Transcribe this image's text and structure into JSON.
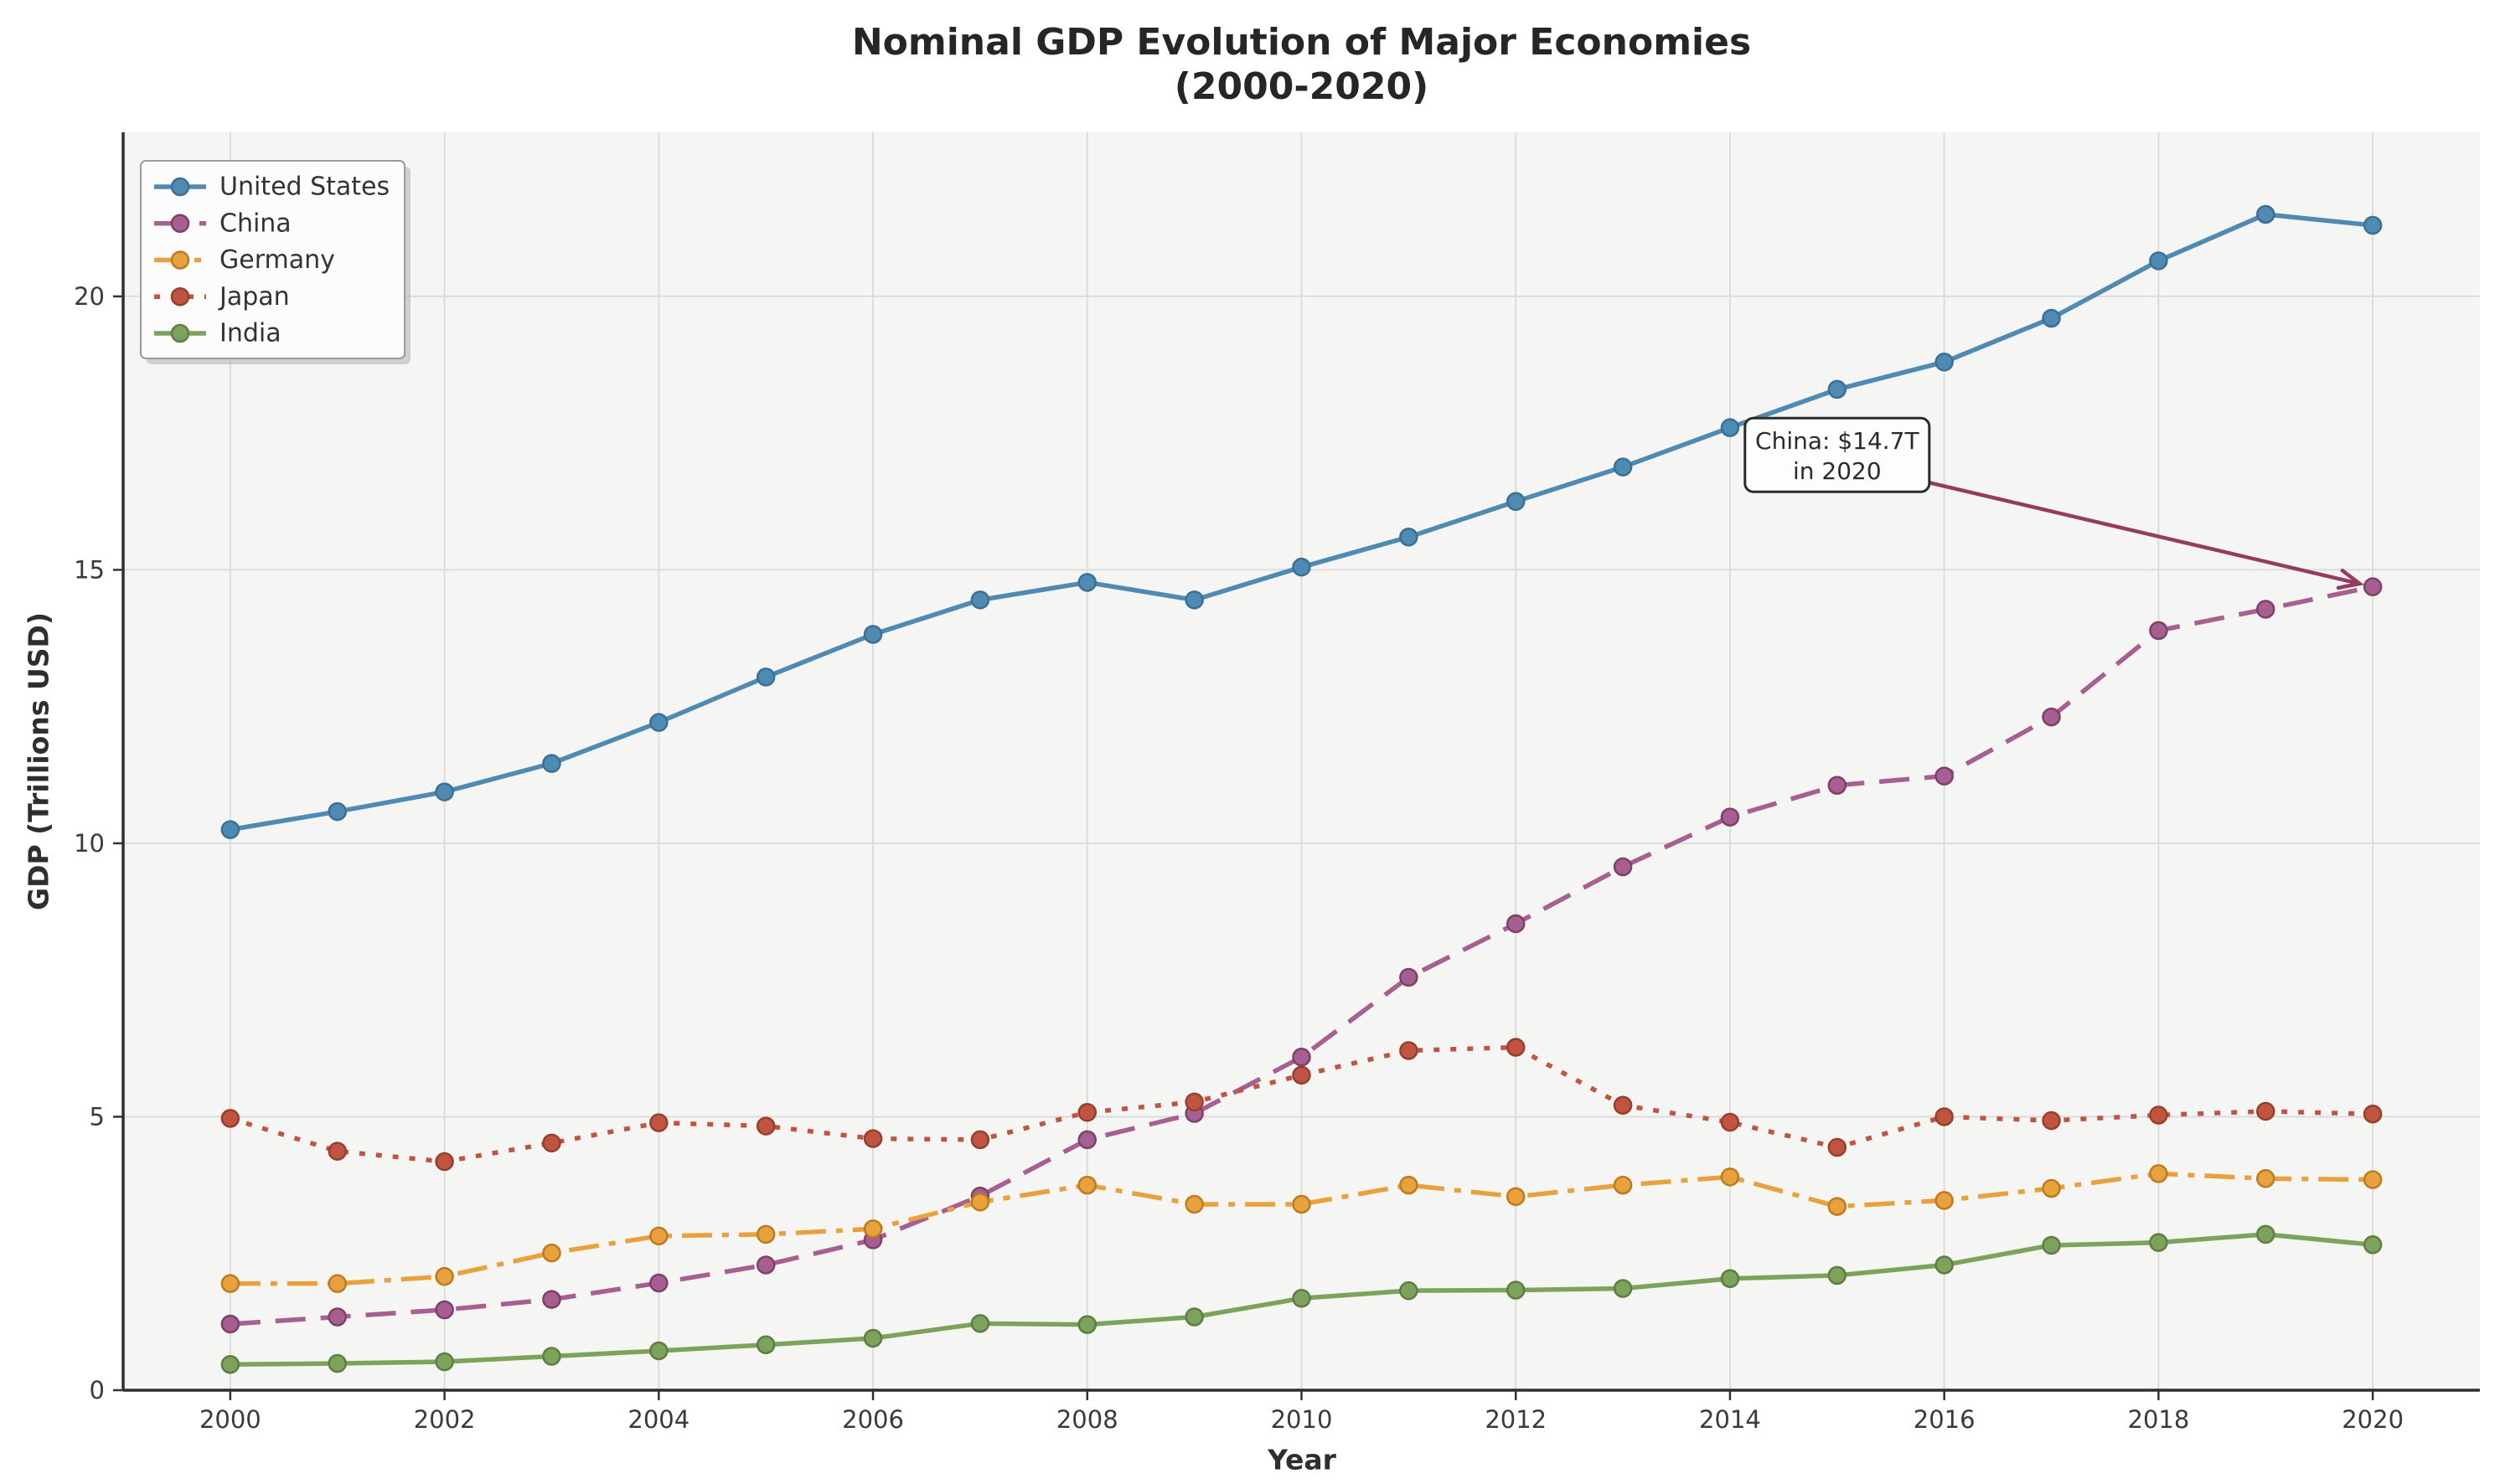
{
  "title": {
    "line1": "Nominal GDP Evolution of Major Economies",
    "line2": "(2000-2020)"
  },
  "chart_data": {
    "type": "line",
    "x": [
      2000,
      2001,
      2002,
      2003,
      2004,
      2005,
      2006,
      2007,
      2008,
      2009,
      2010,
      2011,
      2012,
      2013,
      2014,
      2015,
      2016,
      2017,
      2018,
      2019,
      2020
    ],
    "series": [
      {
        "name": "United States",
        "style": "solid",
        "color": "#4f8ab3",
        "marker_edge": "#3c6f96",
        "values": [
          10.25,
          10.58,
          10.94,
          11.46,
          12.21,
          13.04,
          13.82,
          14.45,
          14.77,
          14.45,
          15.05,
          15.6,
          16.25,
          16.88,
          17.6,
          18.3,
          18.8,
          19.6,
          20.65,
          21.5,
          21.3
        ]
      },
      {
        "name": "China",
        "style": "dashed",
        "color": "#a75e91",
        "marker_edge": "#7d4067",
        "values": [
          1.21,
          1.34,
          1.47,
          1.66,
          1.96,
          2.29,
          2.75,
          3.55,
          4.58,
          5.06,
          6.09,
          7.55,
          8.53,
          9.57,
          10.48,
          11.06,
          11.23,
          12.31,
          13.89,
          14.28,
          14.69
        ]
      },
      {
        "name": "Germany",
        "style": "dashdot",
        "color": "#e8a13c",
        "marker_edge": "#bd7b1f",
        "values": [
          1.95,
          1.95,
          2.08,
          2.51,
          2.82,
          2.85,
          2.95,
          3.44,
          3.75,
          3.4,
          3.4,
          3.75,
          3.54,
          3.75,
          3.9,
          3.36,
          3.47,
          3.69,
          3.96,
          3.87,
          3.85
        ]
      },
      {
        "name": "Japan",
        "style": "dotted",
        "color": "#c05440",
        "marker_edge": "#95402f",
        "values": [
          4.97,
          4.37,
          4.18,
          4.52,
          4.89,
          4.83,
          4.6,
          4.58,
          5.08,
          5.27,
          5.76,
          6.21,
          6.27,
          5.21,
          4.9,
          4.44,
          5.0,
          4.93,
          5.03,
          5.1,
          5.05
        ]
      },
      {
        "name": "India",
        "style": "solid",
        "color": "#7ca25c",
        "marker_edge": "#5c7f41",
        "values": [
          0.47,
          0.49,
          0.52,
          0.62,
          0.72,
          0.83,
          0.95,
          1.22,
          1.2,
          1.34,
          1.68,
          1.82,
          1.83,
          1.86,
          2.04,
          2.1,
          2.29,
          2.65,
          2.7,
          2.85,
          2.66
        ]
      }
    ],
    "xlabel": "Year",
    "ylabel": "GDP (Trillions USD)",
    "xlim": [
      1999,
      2021
    ],
    "ylim": [
      0,
      23
    ],
    "xticks": [
      2000,
      2002,
      2004,
      2006,
      2008,
      2010,
      2012,
      2014,
      2016,
      2018,
      2020
    ],
    "yticks": [
      0,
      5,
      10,
      15,
      20
    ],
    "grid": true,
    "legend_position": "upper left",
    "annotation": {
      "line1": "China: $14.7T",
      "line2": "in 2020",
      "box_x": 2015.0,
      "box_y": 17.1,
      "target_x": 2020,
      "target_y": 14.69
    }
  },
  "colors": {
    "figure_background": "#ffffff",
    "axes_background": "#f5f5f4",
    "grid": "#dcdcdc",
    "spine": "#2e2e2e",
    "tick": "#333333",
    "tick_label": "#3a3a3a",
    "title": "#262626",
    "legend_background": "#fcfcfc",
    "legend_border": "#9a9a9a",
    "legend_shadow": "#aaaaaa",
    "legend_text": "#333333",
    "annotation_border": "#2b2b2b",
    "annotation_background": "#fdfdfd",
    "annotation_text": "#2b2b2b",
    "annotation_arrow": "#963a5f"
  }
}
